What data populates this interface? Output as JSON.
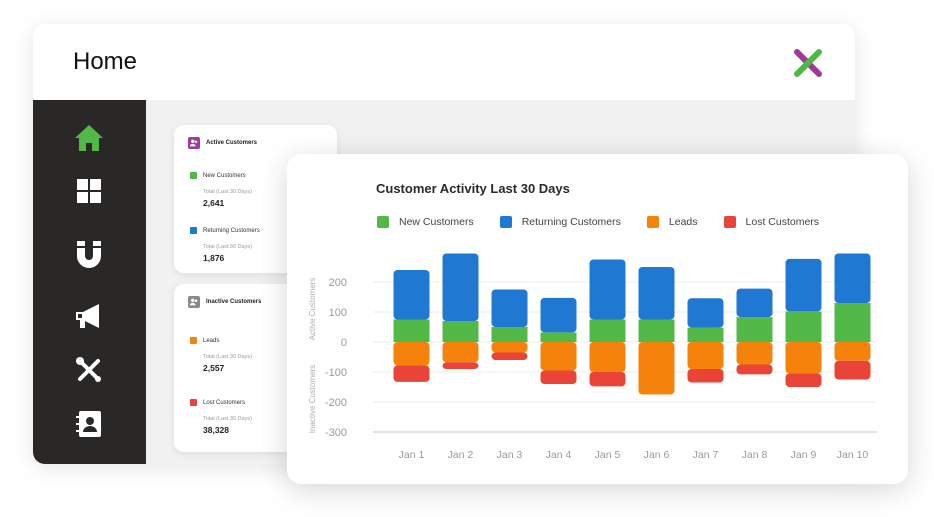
{
  "header": {
    "title": "Home"
  },
  "sidebar": {
    "items": [
      {
        "name": "home-icon",
        "active": true
      },
      {
        "name": "grid-icon"
      },
      {
        "name": "magnet-icon"
      },
      {
        "name": "megaphone-icon"
      },
      {
        "name": "tools-icon"
      },
      {
        "name": "contacts-icon"
      }
    ]
  },
  "active_customers": {
    "title": "Active Customers",
    "new": {
      "label": "New Customers",
      "sub": "Total (Last 30 Days)",
      "value": "2,641"
    },
    "returning": {
      "label": "Returning Customers",
      "sub": "Total (Last 30 Days)",
      "value": "1,876"
    }
  },
  "inactive_customers": {
    "title": "Inactive Customers",
    "leads": {
      "label": "Leads",
      "sub": "Total (Last 30 Days)",
      "value": "2,557"
    },
    "lost": {
      "label": "Lost Customers",
      "sub": "Total (Last 30 Days)",
      "value": "38,328"
    }
  },
  "colors": {
    "new": "#52b848",
    "returning": "#1f78d1",
    "leads": "#f5820b",
    "lost": "#ea4438",
    "accent": "#a0399a"
  },
  "chart_data": {
    "type": "bar",
    "title": "Customer Activity Last 30 Days",
    "ylabel_top": "Active Customers",
    "ylabel_bottom": "Inactive Customers",
    "ylim": [
      -300,
      200
    ],
    "yticks": [
      200,
      100,
      0,
      -100,
      -200,
      -300
    ],
    "categories": [
      "Jan 1",
      "Jan 2",
      "Jan 3",
      "Jan 4",
      "Jan 5",
      "Jan 6",
      "Jan 7",
      "Jan 8",
      "Jan 9",
      "Jan 10"
    ],
    "series": [
      {
        "name": "New Customers",
        "values": [
          75,
          70,
          50,
          32,
          75,
          75,
          48,
          83,
          102,
          130
        ]
      },
      {
        "name": "Returning Customers",
        "values": [
          165,
          225,
          125,
          115,
          200,
          175,
          98,
          95,
          175,
          165
        ]
      },
      {
        "name": "Leads",
        "values": [
          -78,
          -68,
          -35,
          -95,
          -100,
          -175,
          -90,
          -75,
          -105,
          -63
        ]
      },
      {
        "name": "Lost Customers",
        "values": [
          -55,
          -22,
          -25,
          -45,
          -48,
          0,
          -45,
          -33,
          -45,
          -62
        ]
      }
    ]
  }
}
